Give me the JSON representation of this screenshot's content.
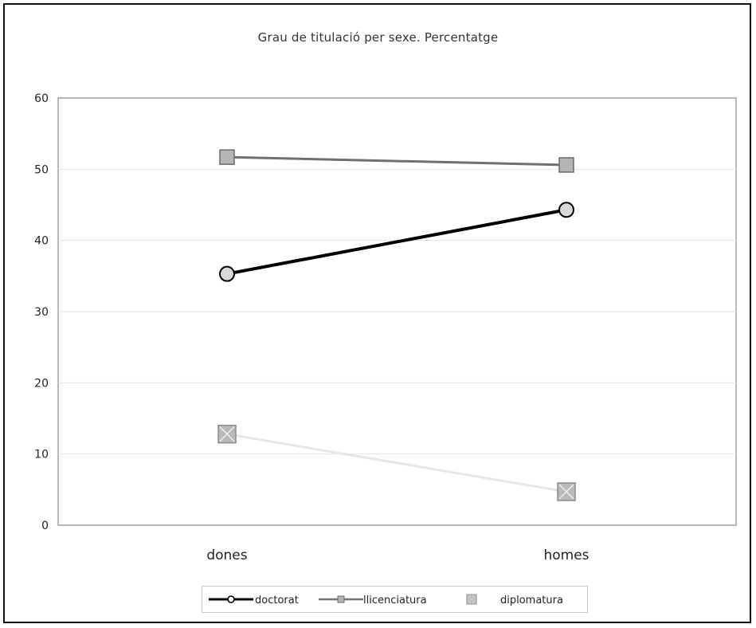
{
  "chart_data": {
    "type": "line",
    "title": "Grau de titulació per sexe. Percentatge",
    "categories": [
      "dones",
      "homes"
    ],
    "y_ticks": [
      "0",
      "10",
      "20",
      "30",
      "40",
      "50",
      "60"
    ],
    "ylim": [
      0,
      60
    ],
    "grid": true,
    "legend_position": "bottom",
    "series": [
      {
        "name": "doctorat",
        "values": [
          35.3,
          44.3
        ],
        "color": "#000000",
        "marker": "circle"
      },
      {
        "name": "llicenciatura",
        "values": [
          51.7,
          50.6
        ],
        "color": "#707070",
        "marker": "square"
      },
      {
        "name": "diplomatura",
        "values": [
          12.8,
          4.7
        ],
        "color": "#e6e6e6",
        "marker": "square-x"
      }
    ]
  }
}
